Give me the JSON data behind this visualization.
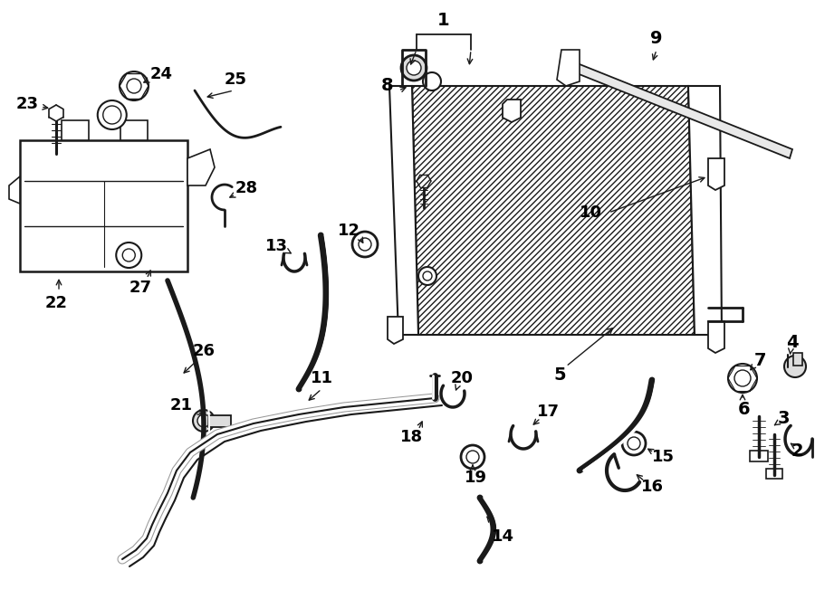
{
  "background_color": "#ffffff",
  "line_color": "#1a1a1a",
  "figsize": [
    9.0,
    6.62
  ],
  "dpi": 100,
  "label_fontsize": 13,
  "label_bold": true
}
